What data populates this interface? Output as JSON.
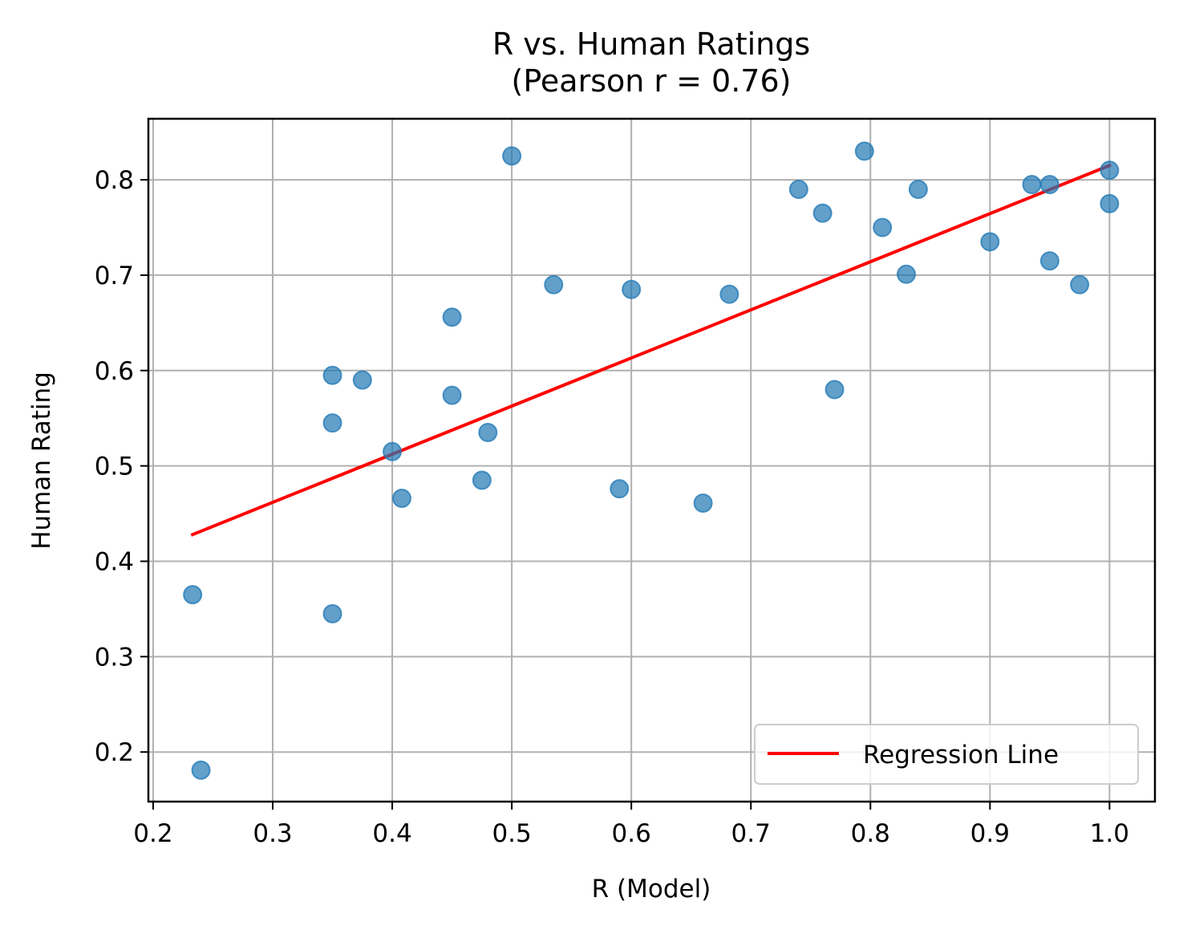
{
  "chart_data": {
    "type": "scatter",
    "title": "R vs. Human Ratings",
    "subtitle": "(Pearson r = 0.76)",
    "xlabel": "R (Model)",
    "ylabel": "Human Rating",
    "xlim": [
      0.196,
      1.038
    ],
    "ylim": [
      0.148,
      0.864
    ],
    "x_ticks": [
      0.2,
      0.3,
      0.4,
      0.5,
      0.6,
      0.7,
      0.8,
      0.9,
      1.0
    ],
    "y_ticks": [
      0.2,
      0.3,
      0.4,
      0.5,
      0.6,
      0.7,
      0.8
    ],
    "x_tick_labels": [
      "0.2",
      "0.3",
      "0.4",
      "0.5",
      "0.6",
      "0.7",
      "0.8",
      "0.9",
      "1.0"
    ],
    "y_tick_labels": [
      "0.2",
      "0.3",
      "0.4",
      "0.5",
      "0.6",
      "0.7",
      "0.8"
    ],
    "grid": true,
    "legend_position": "bottom-right",
    "series": [
      {
        "type": "scatter",
        "color": "#1f77b4",
        "points": [
          {
            "x": 0.233,
            "y": 0.365
          },
          {
            "x": 0.24,
            "y": 0.181
          },
          {
            "x": 0.35,
            "y": 0.595
          },
          {
            "x": 0.35,
            "y": 0.545
          },
          {
            "x": 0.35,
            "y": 0.345
          },
          {
            "x": 0.375,
            "y": 0.59
          },
          {
            "x": 0.4,
            "y": 0.515
          },
          {
            "x": 0.408,
            "y": 0.466
          },
          {
            "x": 0.45,
            "y": 0.656
          },
          {
            "x": 0.45,
            "y": 0.574
          },
          {
            "x": 0.475,
            "y": 0.485
          },
          {
            "x": 0.48,
            "y": 0.535
          },
          {
            "x": 0.5,
            "y": 0.825
          },
          {
            "x": 0.535,
            "y": 0.69
          },
          {
            "x": 0.59,
            "y": 0.476
          },
          {
            "x": 0.6,
            "y": 0.685
          },
          {
            "x": 0.66,
            "y": 0.461
          },
          {
            "x": 0.682,
            "y": 0.68
          },
          {
            "x": 0.74,
            "y": 0.79
          },
          {
            "x": 0.76,
            "y": 0.765
          },
          {
            "x": 0.77,
            "y": 0.58
          },
          {
            "x": 0.795,
            "y": 0.83
          },
          {
            "x": 0.81,
            "y": 0.75
          },
          {
            "x": 0.83,
            "y": 0.701
          },
          {
            "x": 0.84,
            "y": 0.79
          },
          {
            "x": 0.9,
            "y": 0.735
          },
          {
            "x": 0.935,
            "y": 0.795
          },
          {
            "x": 0.95,
            "y": 0.795
          },
          {
            "x": 0.95,
            "y": 0.715
          },
          {
            "x": 0.975,
            "y": 0.69
          },
          {
            "x": 1.0,
            "y": 0.81
          },
          {
            "x": 1.0,
            "y": 0.775
          }
        ]
      },
      {
        "type": "line",
        "name": "Regression Line",
        "color": "#ff0000",
        "x": [
          0.233,
          1.0
        ],
        "y": [
          0.428,
          0.815
        ]
      }
    ]
  }
}
